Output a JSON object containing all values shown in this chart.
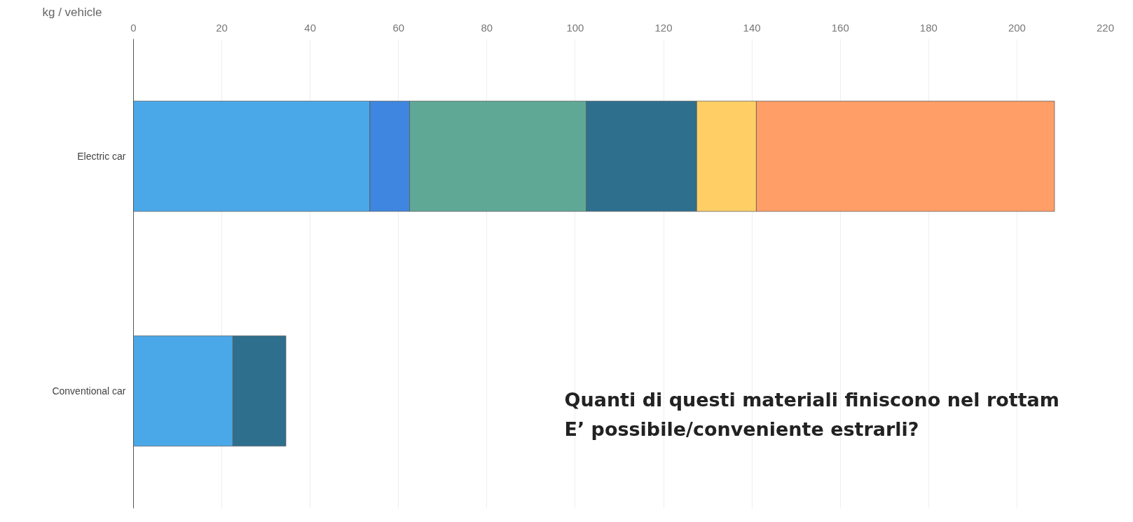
{
  "chart_data": {
    "type": "bar",
    "orientation": "horizontal",
    "stacked": true,
    "xlabel": "kg / vehicle",
    "categories": [
      "Electric car",
      "Conventional car"
    ],
    "series": [
      {
        "color": "#4aa8e8",
        "values": [
          53.5,
          22.5
        ]
      },
      {
        "color": "#3f86e0",
        "values": [
          9,
          0
        ]
      },
      {
        "color": "#5fa896",
        "values": [
          40,
          0
        ]
      },
      {
        "color": "#2e6f8e",
        "values": [
          25,
          12
        ]
      },
      {
        "color": "#ffcf66",
        "values": [
          13.5,
          0
        ]
      },
      {
        "color": "#ff9e66",
        "values": [
          67.5,
          0
        ]
      }
    ],
    "xlim": [
      0,
      220
    ],
    "xticks": [
      0,
      20,
      40,
      60,
      80,
      100,
      120,
      140,
      160,
      180,
      200,
      220
    ],
    "grid": "x",
    "annotations": [
      "Quanti di questi materiali finiscono nel rottam",
      "E’ possibile/conveniente estrarli?"
    ]
  }
}
